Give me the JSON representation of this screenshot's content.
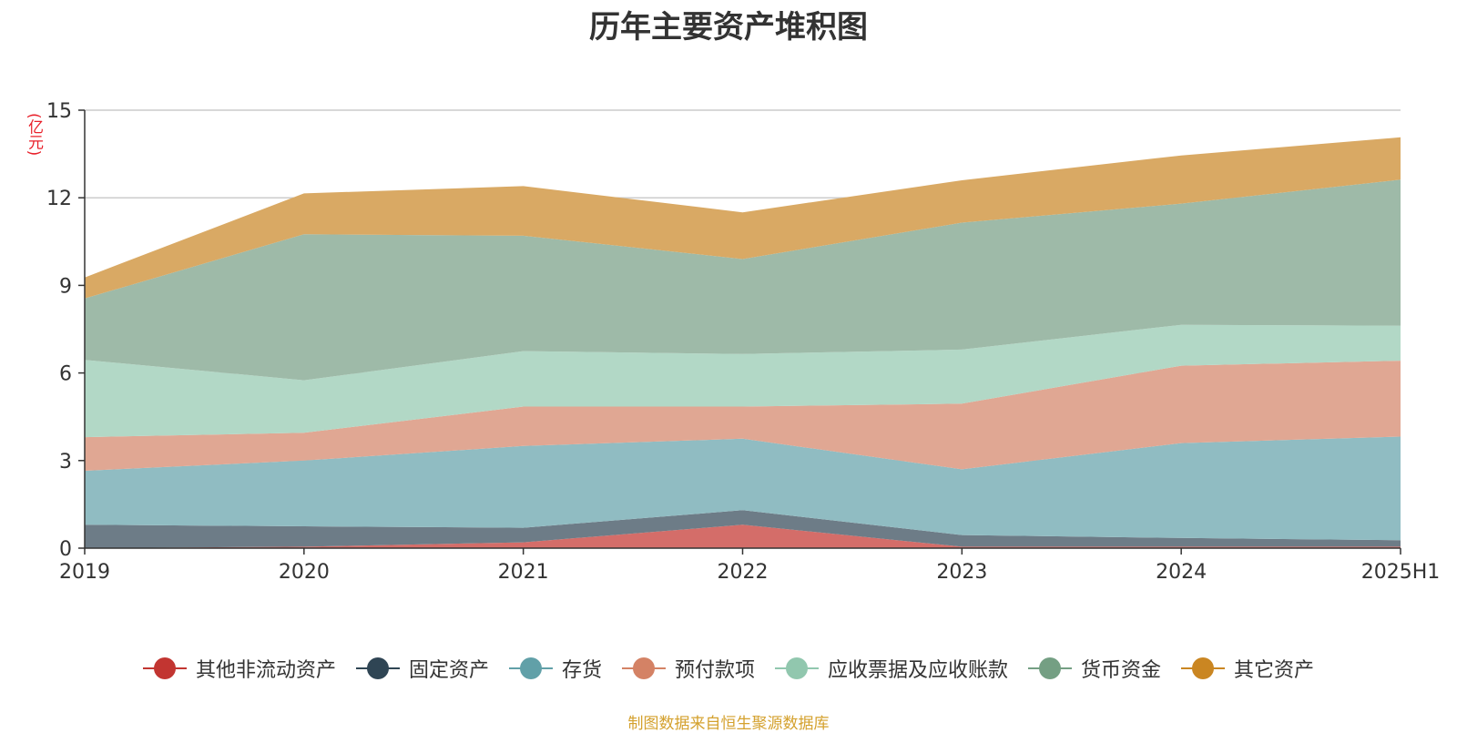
{
  "title": "历年主要资产堆积图",
  "unit_label": "(亿元)",
  "source": "制图数据来自恒生聚源数据库",
  "chart_data": {
    "type": "area",
    "stacked": true,
    "title": "历年主要资产堆积图",
    "ylabel": "(亿元)",
    "categories": [
      "2019",
      "2020",
      "2021",
      "2022",
      "2023",
      "2024",
      "2025H1"
    ],
    "ylim": [
      0,
      15
    ],
    "yticks": [
      "0",
      "3",
      "6",
      "9",
      "12",
      "15"
    ],
    "grid": true,
    "legend_position": "bottom",
    "series": [
      {
        "name": "其他非流动资产",
        "color": "#c23531",
        "fill": "#d46d69",
        "values": [
          0.0,
          0.05,
          0.2,
          0.8,
          0.05,
          0.05,
          0.05
        ]
      },
      {
        "name": "固定资产",
        "color": "#2f4554",
        "fill": "#6d7c87",
        "values": [
          0.8,
          0.7,
          0.5,
          0.5,
          0.4,
          0.3,
          0.22
        ]
      },
      {
        "name": "存货",
        "color": "#61a0a8",
        "fill": "#90bcc2",
        "values": [
          1.85,
          2.25,
          2.8,
          2.45,
          2.25,
          3.25,
          3.55
        ]
      },
      {
        "name": "预付款项",
        "color": "#d48265",
        "fill": "#e0a793",
        "values": [
          1.15,
          0.95,
          1.35,
          1.1,
          2.25,
          2.65,
          2.6
        ]
      },
      {
        "name": "应收票据及应收账款",
        "color": "#91c7ae",
        "fill": "#b2d8c6",
        "values": [
          2.65,
          1.8,
          1.9,
          1.8,
          1.85,
          1.4,
          1.2
        ]
      },
      {
        "name": "货币资金",
        "color": "#749f83",
        "fill": "#9eba a8",
        "values": [
          2.1,
          5.0,
          3.95,
          3.25,
          4.35,
          4.15,
          5.0
        ]
      },
      {
        "name": "其它资产",
        "color": "#ca8622",
        "fill": "#d9a964",
        "values": [
          0.72,
          1.4,
          1.7,
          1.6,
          1.45,
          1.65,
          1.45
        ]
      }
    ]
  }
}
